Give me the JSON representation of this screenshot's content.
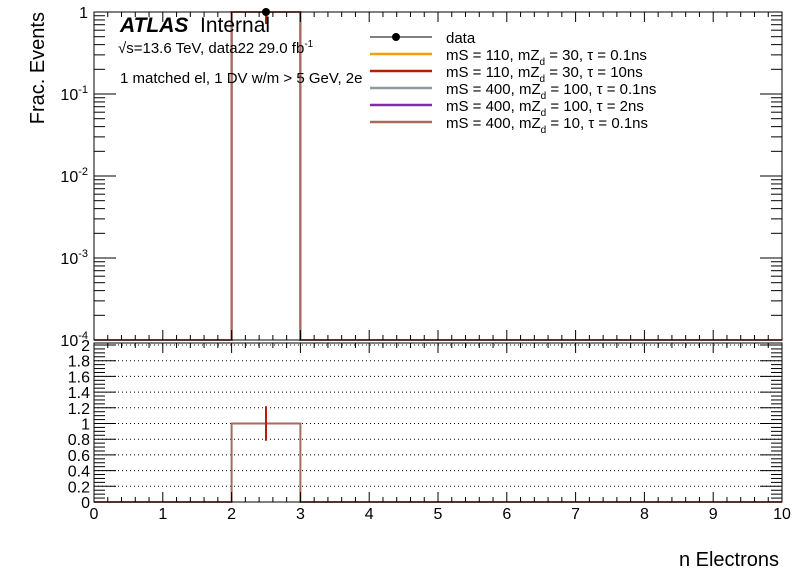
{
  "chart_data": [
    {
      "type": "bar",
      "panel": "main",
      "ylabel": "Frac. Events",
      "yscale": "log",
      "ylim": [
        0.0001,
        1
      ],
      "xlim": [
        0,
        10
      ],
      "ytick_labels": [
        "1",
        "10^-1",
        "10^-2",
        "10^-3",
        "10^-4"
      ],
      "bin_edges": [
        0,
        1,
        2,
        3,
        4,
        5,
        6,
        7,
        8,
        9,
        10
      ],
      "series": [
        {
          "name": "data",
          "style": "points",
          "color": "#000000",
          "values": [
            0,
            0,
            1,
            0,
            0,
            0,
            0,
            0,
            0,
            0
          ]
        },
        {
          "name": "mS = 110, mZ_d = 30, τ = 0.1ns",
          "color": "#f5a000",
          "values": [
            0,
            0,
            1,
            0,
            0,
            0,
            0,
            0,
            0,
            0
          ]
        },
        {
          "name": "mS = 110, mZ_d = 30, τ = 10ns",
          "color": "#b42000",
          "values": [
            0,
            0,
            1,
            0,
            0,
            0,
            0,
            0,
            0,
            0
          ]
        },
        {
          "name": "mS = 400, mZ_d = 100, τ = 0.1ns",
          "color": "#8e9c9c",
          "values": [
            0,
            0,
            1,
            0,
            0,
            0,
            0,
            0,
            0,
            0
          ]
        },
        {
          "name": "mS = 400, mZ_d = 100, τ = 2ns",
          "color": "#7a2eb4",
          "values": [
            0,
            0,
            1,
            0,
            0,
            0,
            0,
            0,
            0,
            0
          ]
        },
        {
          "name": "mS = 400, mZ_d = 10, τ = 0.1ns",
          "color": "#a86a5c",
          "values": [
            0,
            0,
            1,
            0,
            0,
            0,
            0,
            0,
            0,
            0
          ]
        }
      ],
      "legend": {
        "placement": "top-right",
        "entries": [
          {
            "pre": "data",
            "sub": "",
            "post": ""
          },
          {
            "pre": "mS = 110, mZ",
            "sub": "d",
            "post": " = 30, τ = 0.1ns"
          },
          {
            "pre": "mS = 110, mZ",
            "sub": "d",
            "post": " = 30, τ = 10ns"
          },
          {
            "pre": "mS = 400, mZ",
            "sub": "d",
            "post": " = 100, τ = 0.1ns"
          },
          {
            "pre": "mS = 400, mZ",
            "sub": "d",
            "post": " = 100, τ = 2ns"
          },
          {
            "pre": "mS = 400, mZ",
            "sub": "d",
            "post": " = 10, τ = 0.1ns"
          }
        ]
      },
      "annotations": {
        "atlas": "ATLAS",
        "internal": "Internal",
        "energy": "√s=13.6 TeV, data22 29.0 fb",
        "energy_sup": "-1",
        "selection": "1 matched el, 1 DV w/m > 5 GeV, 2e"
      }
    },
    {
      "type": "bar",
      "panel": "ratio",
      "ylim": [
        0,
        2
      ],
      "grid": true,
      "ytick_labels": [
        "0",
        "0.2",
        "0.4",
        "0.6",
        "0.8",
        "1",
        "1.2",
        "1.4",
        "1.6",
        "1.8",
        "2"
      ],
      "xlabel": "n Electrons",
      "xtick_labels": [
        "0",
        "1",
        "2",
        "3",
        "4",
        "5",
        "6",
        "7",
        "8",
        "9",
        "10"
      ],
      "bin_edges": [
        0,
        1,
        2,
        3,
        4,
        5,
        6,
        7,
        8,
        9,
        10
      ],
      "values": [
        0,
        0,
        1,
        0,
        0,
        0,
        0,
        0,
        0,
        0
      ],
      "error_bar": {
        "x": 2.5,
        "low": 0.78,
        "high": 1.22,
        "color": "#b42000"
      },
      "color": "#a86a5c"
    }
  ]
}
